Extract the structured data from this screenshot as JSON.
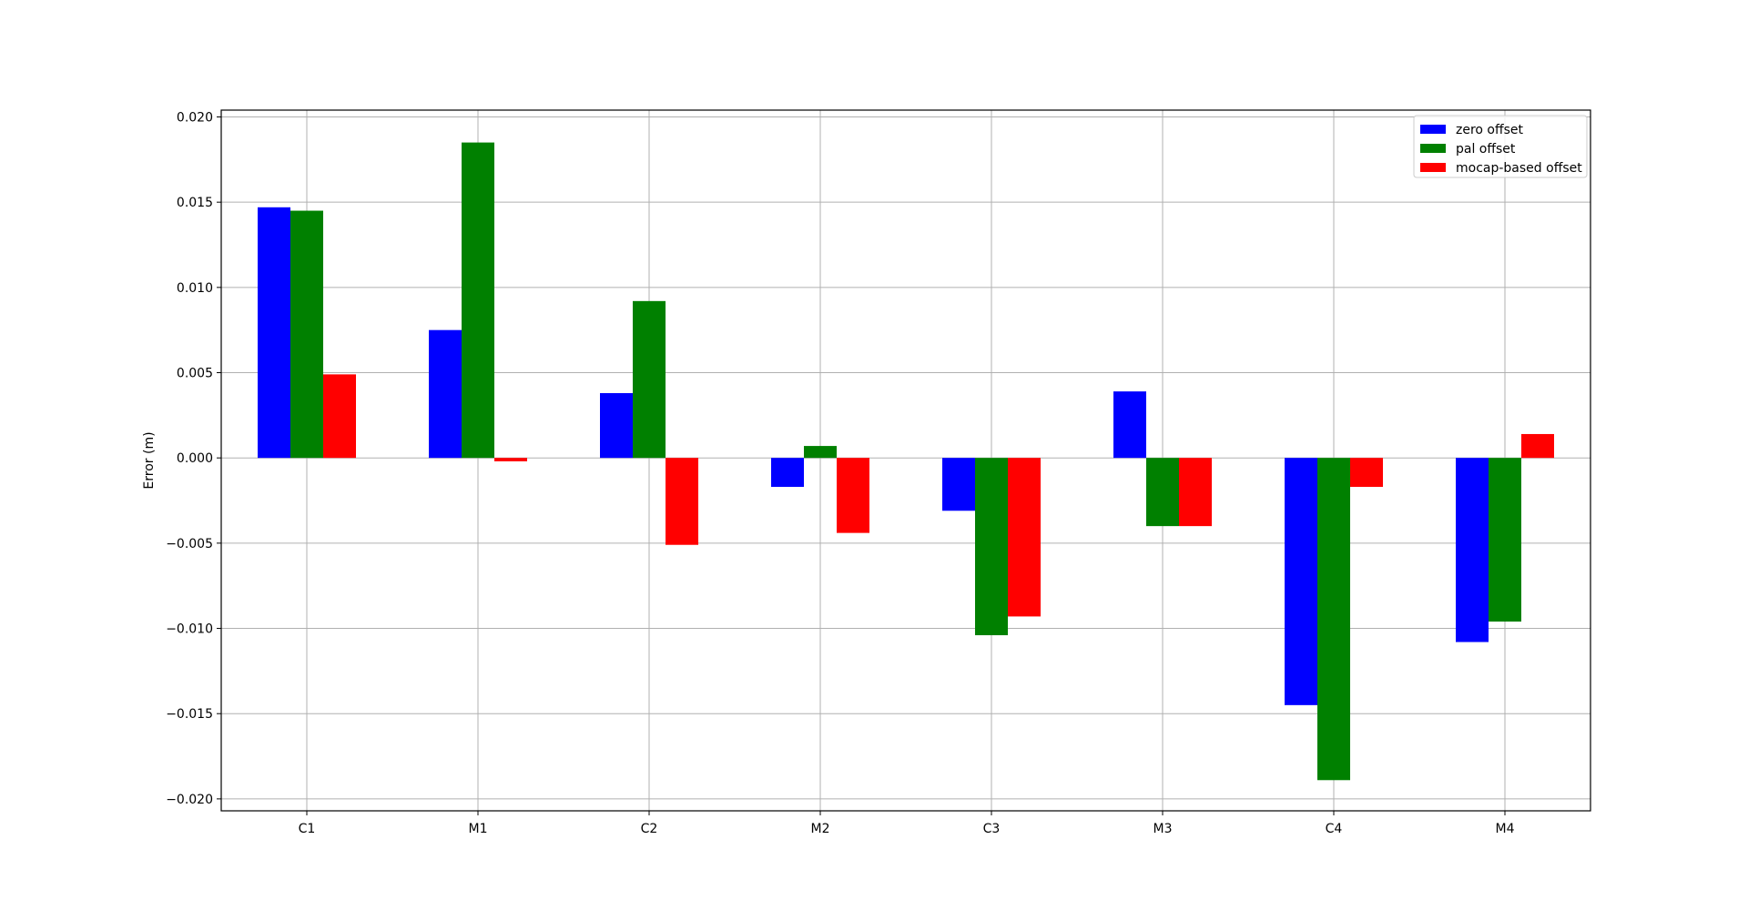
{
  "chart_data": {
    "type": "bar",
    "title": "",
    "xlabel": "",
    "ylabel": "Error (m)",
    "categories": [
      "C1",
      "M1",
      "C2",
      "M2",
      "C3",
      "M3",
      "C4",
      "M4"
    ],
    "ylim": [
      -0.0207,
      0.0204
    ],
    "yticks": [
      0.02,
      0.015,
      0.01,
      0.005,
      0.0,
      -0.005,
      -0.01,
      -0.015,
      -0.02
    ],
    "ytick_labels": [
      "0.020",
      "0.015",
      "0.010",
      "0.005",
      "0.000",
      "−0.005",
      "−0.010",
      "−0.015",
      "−0.020"
    ],
    "grid": true,
    "legend_position": "top-right",
    "series": [
      {
        "name": "zero offset",
        "color": "#0000ff",
        "values": [
          0.0147,
          0.0075,
          0.0038,
          -0.0017,
          -0.0031,
          0.0039,
          -0.0145,
          -0.0108
        ]
      },
      {
        "name": "pal offset",
        "color": "#008000",
        "values": [
          0.0145,
          0.0185,
          0.0092,
          0.0007,
          -0.0104,
          -0.004,
          -0.0189,
          -0.0096
        ]
      },
      {
        "name": "mocap-based offset",
        "color": "#ff0000",
        "values": [
          0.0049,
          -0.0002,
          -0.0051,
          -0.0044,
          -0.0093,
          -0.004,
          -0.0017,
          0.0014
        ]
      }
    ]
  }
}
